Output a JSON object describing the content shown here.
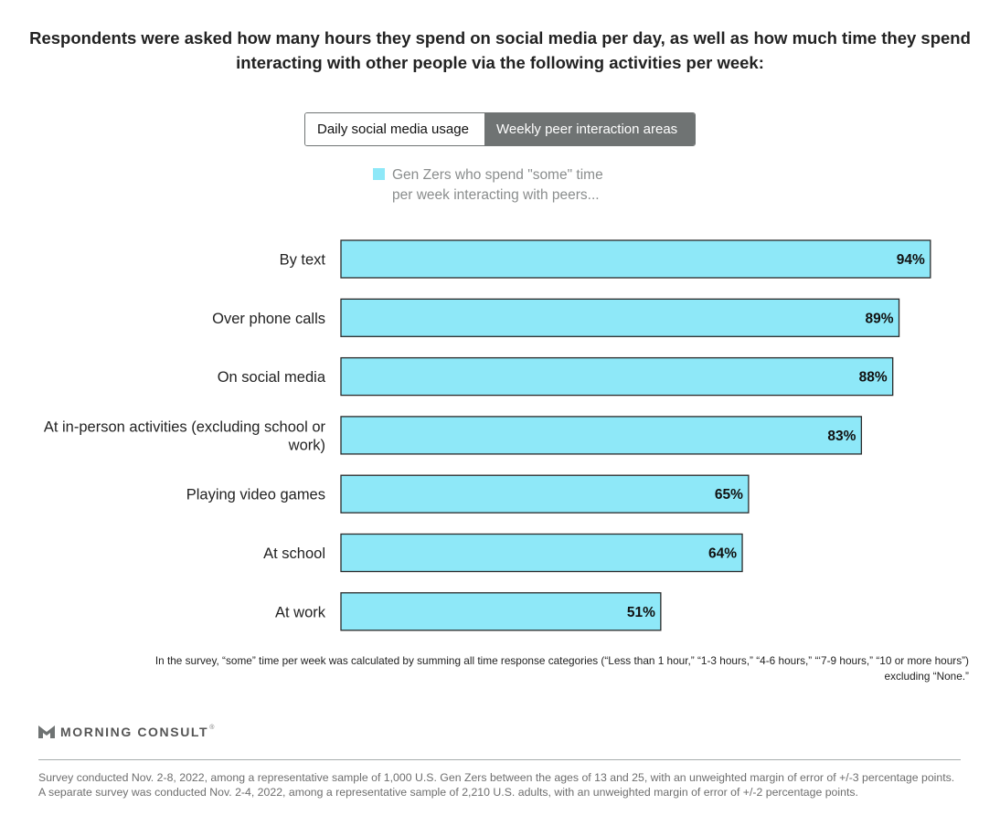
{
  "header": {
    "title_line1": "Respondents were asked how many hours they spend on social media per day, as well as how much time they spend",
    "title_line2": "interacting with other people via the following activities per week:"
  },
  "toggle": {
    "option_daily": "Daily social media usage",
    "option_weekly": "Weekly peer interaction areas",
    "selected": "Weekly peer interaction areas"
  },
  "colors": {
    "bar": "#8ee8f8",
    "toggle_active": "#6f7373"
  },
  "chart_data": {
    "type": "bar",
    "orientation": "horizontal",
    "categories": [
      [
        "By text"
      ],
      [
        "Over phone calls"
      ],
      [
        "On social media"
      ],
      [
        "At in-person activities (excluding school or",
        "work)"
      ],
      [
        "Playing video games"
      ],
      [
        "At school"
      ],
      [
        "At work"
      ]
    ],
    "values": [
      94,
      89,
      88,
      83,
      65,
      64,
      51
    ],
    "value_labels": [
      "94%",
      "89%",
      "88%",
      "83%",
      "65%",
      "64%",
      "51%"
    ],
    "legend": {
      "line1": "Gen Zers who spend \"some\" time",
      "line2": "per week interacting with peers...",
      "placement": "top"
    },
    "xlim": [
      0,
      100
    ],
    "grid": false
  },
  "note": {
    "line1": "In the survey, “some” time per week was calculated by summing all time response categories (“Less than 1 hour,” “1-3 hours,” “4-6 hours,” “‘7-9 hours,” “10 or more hours”)",
    "line2": "excluding “None.”"
  },
  "brand": {
    "name": "MORNING CONSULT",
    "trademark": "®",
    "logo_icon": "morning-consult-logo-icon"
  },
  "footer": {
    "text": "Survey conducted Nov. 2-8, 2022, among a representative sample of 1,000 U.S. Gen Zers between the ages of 13 and 25, with an unweighted margin of error of +/-3 percentage points. A separate survey was conducted Nov. 2-4, 2022, among a representative sample of 2,210 U.S. adults, with an unweighted margin of error of +/-2 percentage points."
  }
}
